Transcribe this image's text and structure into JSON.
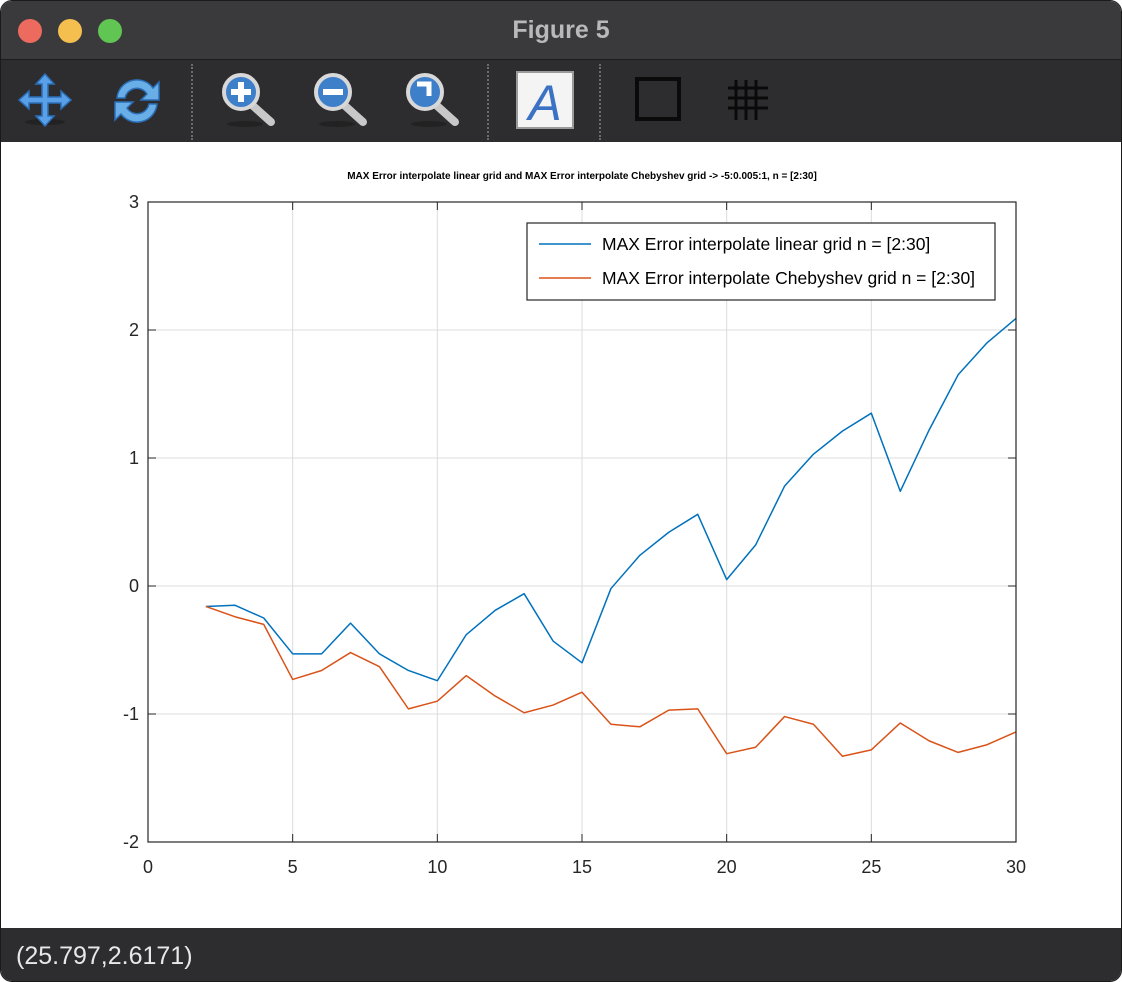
{
  "window": {
    "title": "Figure 5"
  },
  "toolbar": {
    "tools": [
      {
        "name": "pan-tool",
        "icon": "pan-arrows-icon"
      },
      {
        "name": "rotate-tool",
        "icon": "rotate-icon"
      },
      {
        "name": "zoom-in-tool",
        "icon": "zoom-in-icon"
      },
      {
        "name": "zoom-out-tool",
        "icon": "zoom-out-icon"
      },
      {
        "name": "zoom-reset-tool",
        "icon": "zoom-reset-icon"
      },
      {
        "name": "insert-text-tool",
        "icon": "text-a-icon"
      },
      {
        "name": "toggle-box-tool",
        "icon": "box-icon"
      },
      {
        "name": "toggle-grid-tool",
        "icon": "grid-icon"
      }
    ],
    "text_glyph": "A"
  },
  "status": {
    "coords": "(25.797,2.6171)"
  },
  "colors": {
    "linear": "#0072bd",
    "chebyshev": "#d95319",
    "grid": "#dcdcdc"
  },
  "chart_data": {
    "type": "line",
    "title": "MAX Error interpolate linear grid and MAX Error interpolate Chebyshev grid -> -5:0.005:1, n = [2:30]",
    "xlabel": "",
    "ylabel": "",
    "xlim": [
      0,
      30
    ],
    "ylim": [
      -2,
      3
    ],
    "xticks": [
      0,
      5,
      10,
      15,
      20,
      25,
      30
    ],
    "yticks": [
      -2,
      -1,
      0,
      1,
      2,
      3
    ],
    "grid": true,
    "legend_position": "top-right",
    "x": [
      2,
      3,
      4,
      5,
      6,
      7,
      8,
      9,
      10,
      11,
      12,
      13,
      14,
      15,
      16,
      17,
      18,
      19,
      20,
      21,
      22,
      23,
      24,
      25,
      26,
      27,
      28,
      29,
      30
    ],
    "series": [
      {
        "name": "MAX Error interpolate linear grid n = [2:30]",
        "values": [
          -0.16,
          -0.15,
          -0.25,
          -0.53,
          -0.53,
          -0.29,
          -0.53,
          -0.66,
          -0.74,
          -0.38,
          -0.19,
          -0.06,
          -0.43,
          -0.6,
          -0.02,
          0.24,
          0.42,
          0.56,
          0.05,
          0.32,
          0.78,
          1.03,
          1.21,
          1.35,
          0.74,
          1.22,
          1.65,
          1.9,
          2.09
        ]
      },
      {
        "name": "MAX Error interpolate Chebyshev grid n = [2:30]",
        "values": [
          -0.16,
          -0.24,
          -0.3,
          -0.73,
          -0.66,
          -0.52,
          -0.63,
          -0.96,
          -0.9,
          -0.7,
          -0.86,
          -0.99,
          -0.93,
          -0.83,
          -1.08,
          -1.1,
          -0.97,
          -0.96,
          -1.31,
          -1.26,
          -1.02,
          -1.08,
          -1.33,
          -1.28,
          -1.07,
          -1.21,
          -1.3,
          -1.24,
          -1.14
        ]
      }
    ]
  }
}
